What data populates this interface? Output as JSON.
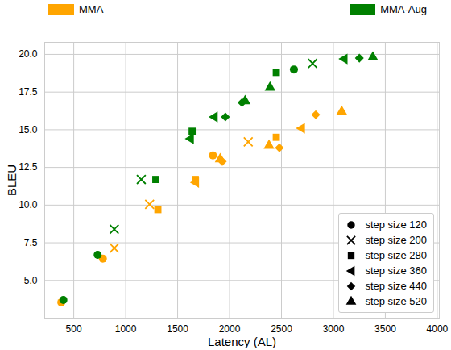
{
  "chart_data": {
    "type": "scatter",
    "x_label": "Latency (AL)",
    "y_label": "BLEU",
    "xlim": [
      220,
      4020
    ],
    "ylim": [
      2.5,
      20.8
    ],
    "xticks": [
      500,
      1000,
      1500,
      2000,
      2500,
      3000,
      3500,
      4000
    ],
    "yticks": [
      {
        "value": 5,
        "label": "5.0"
      },
      {
        "value": 7.5,
        "label": "7.5"
      },
      {
        "value": 10,
        "label": "10.0"
      },
      {
        "value": 12.5,
        "label": "12.5"
      },
      {
        "value": 15,
        "label": "15.0"
      },
      {
        "value": 17.5,
        "label": "17.5"
      },
      {
        "value": 20,
        "label": "20.0"
      }
    ],
    "grid": true,
    "marker_legend": [
      {
        "label": "step size 120",
        "marker": "circle"
      },
      {
        "label": "step size 200",
        "marker": "x"
      },
      {
        "label": "step size 280",
        "marker": "square"
      },
      {
        "label": "step size 360",
        "marker": "triangle-left"
      },
      {
        "label": "step size 440",
        "marker": "diamond"
      },
      {
        "label": "step size 520",
        "marker": "triangle"
      }
    ],
    "series": [
      {
        "name": "MMA",
        "color": "#ffa500",
        "x": [
          380,
          780,
          1840,
          890,
          1230,
          2180,
          1310,
          1670,
          2450,
          1670,
          2690,
          1930,
          2480,
          2830,
          1910,
          2380,
          3080
        ],
        "values": [
          3.55,
          6.45,
          13.3,
          7.15,
          10.05,
          14.2,
          9.7,
          11.7,
          14.5,
          11.5,
          15.1,
          12.9,
          13.8,
          16.0,
          13.05,
          13.95,
          16.2
        ],
        "groups": [
          "step size 120",
          "step size 120",
          "step size 120",
          "step size 200",
          "step size 200",
          "step size 200",
          "step size 280",
          "step size 280",
          "step size 280",
          "step size 360",
          "step size 360",
          "step size 440",
          "step size 440",
          "step size 440",
          "step size 520",
          "step size 520",
          "step size 520"
        ]
      },
      {
        "name": "MMA-Aug",
        "color": "#008000",
        "x": [
          400,
          730,
          2620,
          890,
          1150,
          2800,
          1290,
          1640,
          2450,
          1620,
          1850,
          3100,
          1960,
          2120,
          3250,
          2150,
          2390,
          3380
        ],
        "values": [
          3.7,
          6.7,
          19.0,
          8.4,
          11.7,
          19.4,
          11.7,
          14.9,
          18.8,
          14.4,
          15.85,
          19.7,
          15.85,
          16.8,
          19.75,
          16.9,
          17.8,
          19.8
        ],
        "groups": [
          "step size 120",
          "step size 120",
          "step size 120",
          "step size 200",
          "step size 200",
          "step size 200",
          "step size 280",
          "step size 280",
          "step size 280",
          "step size 360",
          "step size 360",
          "step size 360",
          "step size 440",
          "step size 440",
          "step size 440",
          "step size 520",
          "step size 520",
          "step size 520"
        ]
      }
    ]
  }
}
